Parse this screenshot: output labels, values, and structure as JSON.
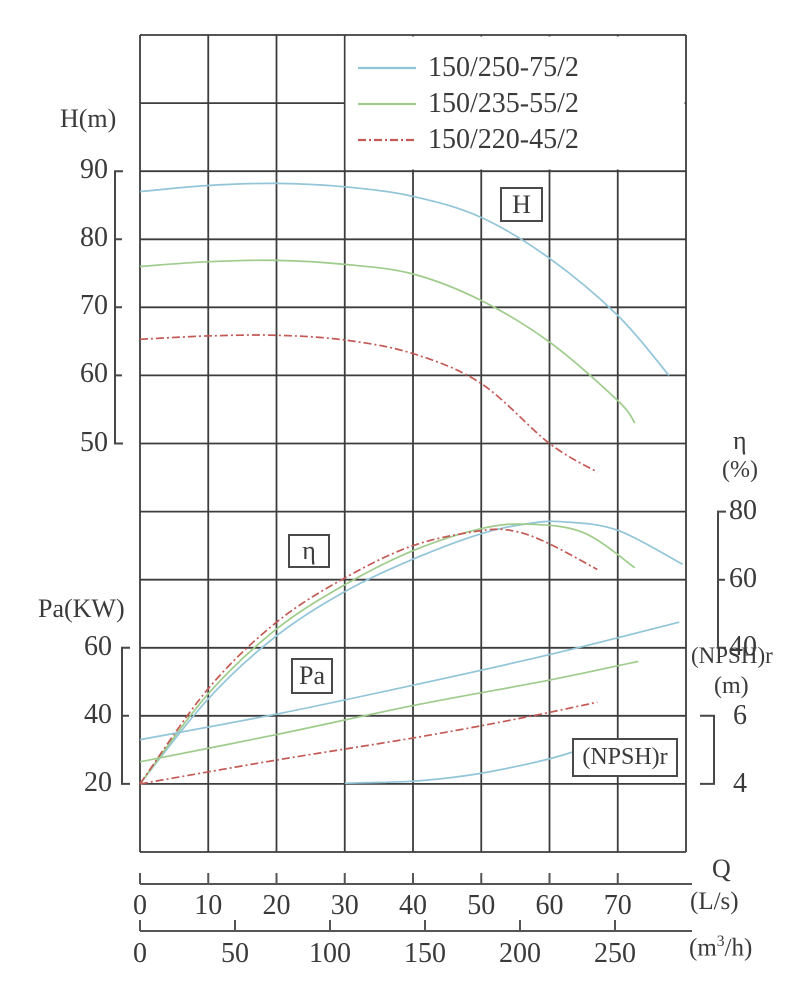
{
  "chart_data": {
    "type": "line",
    "title": "",
    "legend": {
      "position": "top-right-inside",
      "entries": [
        {
          "label": "150/250-75/2",
          "color": "#92c5d8",
          "style": "solid"
        },
        {
          "label": "150/235-55/2",
          "color": "#9fcc8c",
          "style": "solid"
        },
        {
          "label": "150/220-45/2",
          "color": "#c35a55",
          "style": "dash-dot"
        }
      ]
    },
    "axes": {
      "q_ls": {
        "name": "Q",
        "unit": "(L/s)",
        "range": [
          0,
          80
        ],
        "ticks": [
          0,
          10,
          20,
          30,
          40,
          50,
          60,
          70
        ],
        "grid": true
      },
      "q_m3h": {
        "unit_prefix": "(m",
        "unit_sup": "3",
        "unit_suffix": "/h)",
        "range": [
          0,
          290
        ],
        "ticks": [
          0,
          50,
          100,
          150,
          200,
          250
        ]
      },
      "head": {
        "label": "H(m)",
        "ticks": [
          90,
          80,
          70,
          60,
          50
        ]
      },
      "power": {
        "label": "Pa(KW)",
        "ticks": [
          60,
          40,
          20
        ]
      },
      "efficiency": {
        "label": "η",
        "unit": "(%)",
        "ticks": [
          80,
          60,
          40
        ]
      },
      "npshr": {
        "label": "(NPSH)r",
        "unit": "(m)",
        "ticks": [
          6,
          4
        ]
      }
    },
    "curve_labels": {
      "head": "H",
      "efficiency": "η",
      "power": "Pa",
      "npshr": "(NPSH)r"
    },
    "series": {
      "head": [
        {
          "pump": "150/250-75/2",
          "points": [
            [
              0,
              87
            ],
            [
              10,
              87.9
            ],
            [
              20,
              88.2
            ],
            [
              30,
              87.7
            ],
            [
              40,
              86.3
            ],
            [
              50,
              83.2
            ],
            [
              60,
              77.2
            ],
            [
              70,
              68.8
            ],
            [
              77.5,
              60
            ]
          ]
        },
        {
          "pump": "150/235-55/2",
          "points": [
            [
              0,
              76
            ],
            [
              10,
              76.7
            ],
            [
              20,
              76.9
            ],
            [
              30,
              76.3
            ],
            [
              40,
              74.9
            ],
            [
              50,
              71
            ],
            [
              60,
              64.9
            ],
            [
              70,
              56.3
            ],
            [
              72.5,
              53
            ]
          ]
        },
        {
          "pump": "150/220-45/2",
          "points": [
            [
              0,
              65.3
            ],
            [
              10,
              65.8
            ],
            [
              20,
              65.9
            ],
            [
              30,
              65.2
            ],
            [
              40,
              63.2
            ],
            [
              50,
              58.8
            ],
            [
              60,
              50
            ],
            [
              67,
              45.8
            ]
          ]
        }
      ],
      "efficiency": [
        {
          "pump": "150/250-75/2",
          "points": [
            [
              0,
              0
            ],
            [
              10,
              25
            ],
            [
              20,
              43.5
            ],
            [
              30,
              56.5
            ],
            [
              40,
              66
            ],
            [
              50,
              73.5
            ],
            [
              57,
              76.5
            ],
            [
              62,
              77
            ],
            [
              70,
              74.5
            ],
            [
              79.5,
              64.5
            ]
          ]
        },
        {
          "pump": "150/235-55/2",
          "points": [
            [
              0,
              0
            ],
            [
              10,
              26.5
            ],
            [
              20,
              45.5
            ],
            [
              30,
              58.5
            ],
            [
              40,
              68.5
            ],
            [
              50,
              75
            ],
            [
              57,
              76.3
            ],
            [
              65,
              73.8
            ],
            [
              72.5,
              63.5
            ]
          ]
        },
        {
          "pump": "150/220-45/2",
          "points": [
            [
              0,
              0
            ],
            [
              10,
              28
            ],
            [
              20,
              47.5
            ],
            [
              30,
              60.5
            ],
            [
              40,
              70
            ],
            [
              50,
              74.4
            ],
            [
              55,
              74.2
            ],
            [
              60,
              70.5
            ],
            [
              67,
              63
            ]
          ]
        }
      ],
      "power": [
        {
          "pump": "150/250-75/2",
          "points": [
            [
              0,
              33
            ],
            [
              20,
              40.5
            ],
            [
              40,
              49
            ],
            [
              60,
              58
            ],
            [
              79,
              67.5
            ]
          ]
        },
        {
          "pump": "150/235-55/2",
          "points": [
            [
              0,
              26.5
            ],
            [
              20,
              34.5
            ],
            [
              40,
              43
            ],
            [
              60,
              50.5
            ],
            [
              73,
              56
            ]
          ]
        },
        {
          "pump": "150/220-45/2",
          "points": [
            [
              0,
              20
            ],
            [
              20,
              27
            ],
            [
              40,
              33.5
            ],
            [
              55,
              39
            ],
            [
              67,
              44
            ]
          ]
        }
      ],
      "npshr": [
        {
          "pump": "150/250-75/2",
          "points": [
            [
              30,
              4.02
            ],
            [
              40,
              4.08
            ],
            [
              48,
              4.25
            ],
            [
              56,
              4.55
            ],
            [
              62,
              4.85
            ],
            [
              67,
              5.2
            ]
          ]
        }
      ]
    }
  }
}
